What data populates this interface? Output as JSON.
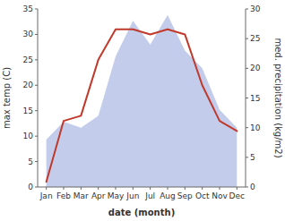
{
  "chart_data": {
    "type": "line",
    "xlabel": "date (month)",
    "ylabel": "max temp (C)",
    "y2label": "med. precipitation (kg/m2)",
    "categories": [
      "Jan",
      "Feb",
      "Mar",
      "Apr",
      "May",
      "Jun",
      "Jul",
      "Aug",
      "Sep",
      "Oct",
      "Nov",
      "Dec"
    ],
    "series": [
      {
        "type": "line",
        "color": "#c0392b",
        "values": [
          1,
          13,
          14,
          25,
          31,
          31,
          30,
          31,
          30,
          20,
          13,
          11
        ]
      },
      {
        "type": "area",
        "color": "#b8c4e8",
        "axis": "y2",
        "values": [
          8,
          11,
          10,
          12,
          22,
          28,
          24,
          29,
          23,
          20,
          13,
          10
        ]
      }
    ],
    "ylim": [
      0,
      35
    ],
    "yticks": [
      0,
      5,
      10,
      15,
      20,
      25,
      30,
      35
    ],
    "y2lim": [
      0,
      30
    ],
    "y2ticks": [
      0,
      5,
      10,
      15,
      20,
      25,
      30
    ],
    "grid": false
  }
}
